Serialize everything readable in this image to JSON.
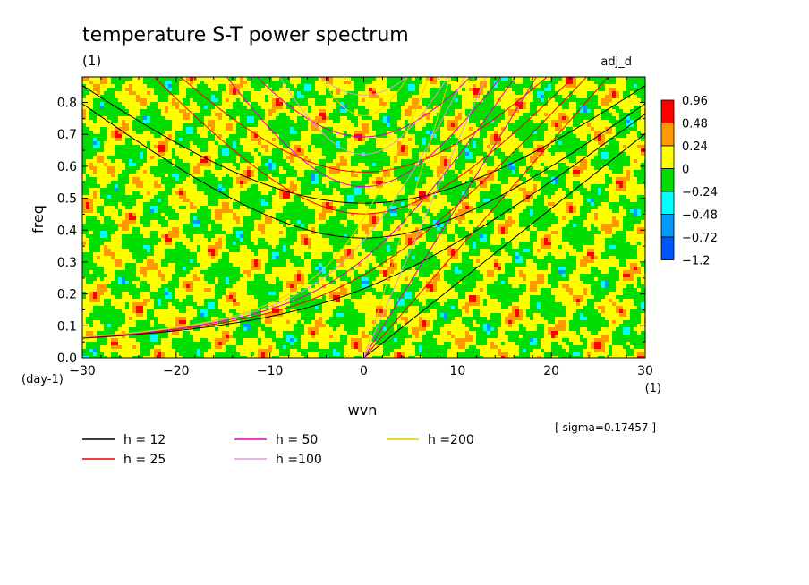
{
  "chart_data": {
    "type": "heatmap",
    "title": "temperature S-T power spectrum",
    "units_label": "(1)",
    "tag": "adj_d",
    "xlabel": "wvn",
    "x_unit": "(1)",
    "ylabel": "freq",
    "y_unit": "(day-1)",
    "xlim": [
      -30,
      30
    ],
    "ylim": [
      0,
      0.88
    ],
    "xticks": [
      -30,
      -20,
      -10,
      0,
      10,
      20,
      30
    ],
    "yticks": [
      0.0,
      0.1,
      0.2,
      0.3,
      0.4,
      0.5,
      0.6,
      0.7,
      0.8
    ],
    "ytick_labels": [
      "0.0",
      "0.1",
      "0.2",
      "0.3",
      "0.4",
      "0.5",
      "0.6",
      "0.7",
      "0.8"
    ],
    "sigma_text": "[ sigma=0.17457 ]",
    "colorbar": {
      "labels": [
        "0.96",
        "0.48",
        "0.24",
        "0",
        "−0.24",
        "−0.48",
        "−0.72",
        "−1.2"
      ],
      "colors": [
        "#ff0000",
        "#ff9900",
        "#ffff00",
        "#00dd00",
        "#00ffff",
        "#0099ff",
        "#0055ff"
      ]
    },
    "dispersion_curves": [
      {
        "label": "h = 12",
        "h": 12,
        "color": "#000000"
      },
      {
        "label": "h = 25",
        "h": 25,
        "color": "#ee0000"
      },
      {
        "label": "h = 50",
        "h": 50,
        "color": "#dd00bb"
      },
      {
        "label": "h =100",
        "h": 100,
        "color": "#dd99dd"
      },
      {
        "label": "h =200",
        "h": 200,
        "color": "#eecc00"
      }
    ]
  }
}
